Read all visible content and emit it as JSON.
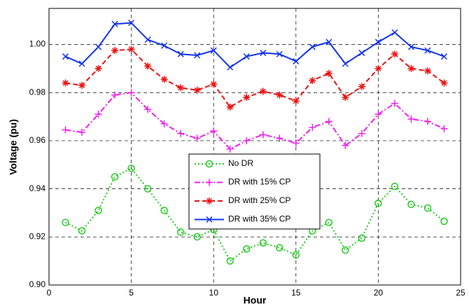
{
  "chart_data": {
    "type": "line",
    "xlabel": "Hour",
    "ylabel": "Voltage (pu)",
    "x": [
      1,
      2,
      3,
      4,
      5,
      6,
      7,
      8,
      9,
      10,
      11,
      12,
      13,
      14,
      15,
      16,
      17,
      18,
      19,
      20,
      21,
      22,
      23,
      24
    ],
    "xlim": [
      0,
      25
    ],
    "xticks": [
      0,
      5,
      10,
      15,
      20,
      25
    ],
    "ylim": [
      0.9,
      1.015
    ],
    "yticks": [
      {
        "value": 0.9,
        "label": "0.90"
      },
      0.92,
      0.94,
      0.96,
      0.98,
      {
        "value": 1.0,
        "label": "1.00"
      }
    ],
    "grid": true,
    "legend": "center",
    "series": [
      {
        "name": "No DR",
        "color": "#22cc22",
        "dash": "dotted",
        "marker": "circle",
        "values": [
          0.926,
          0.9225,
          0.931,
          0.945,
          0.9485,
          0.94,
          0.931,
          0.922,
          0.92,
          0.923,
          0.91,
          0.915,
          0.9175,
          0.9155,
          0.9125,
          0.9225,
          0.926,
          0.9145,
          0.9195,
          0.934,
          0.941,
          0.9335,
          0.932,
          0.9265
        ]
      },
      {
        "name": "DR with 15% CP",
        "color": "#ee22ee",
        "dash": "dashdot",
        "marker": "plus",
        "values": [
          0.9645,
          0.9635,
          0.971,
          0.979,
          0.98,
          0.973,
          0.967,
          0.963,
          0.961,
          0.964,
          0.9565,
          0.96,
          0.9625,
          0.961,
          0.959,
          0.9655,
          0.968,
          0.958,
          0.963,
          0.971,
          0.9755,
          0.969,
          0.968,
          0.965
        ]
      },
      {
        "name": "DR with 25% CP",
        "color": "#ee1111",
        "dash": "dashed",
        "marker": "star",
        "values": [
          0.984,
          0.983,
          0.99,
          0.9975,
          0.998,
          0.991,
          0.9855,
          0.982,
          0.981,
          0.9835,
          0.974,
          0.978,
          0.9805,
          0.979,
          0.9765,
          0.985,
          0.988,
          0.978,
          0.9825,
          0.99,
          0.996,
          0.99,
          0.989,
          0.984
        ]
      },
      {
        "name": "DR with 35% CP",
        "color": "#1133ee",
        "dash": "solid",
        "marker": "x",
        "values": [
          0.995,
          0.992,
          0.999,
          1.0085,
          1.009,
          1.002,
          0.9995,
          0.996,
          0.9955,
          0.9975,
          0.9905,
          0.995,
          0.9965,
          0.996,
          0.993,
          0.999,
          1.001,
          0.992,
          0.9965,
          1.001,
          1.005,
          0.999,
          0.9975,
          0.995
        ]
      }
    ]
  }
}
